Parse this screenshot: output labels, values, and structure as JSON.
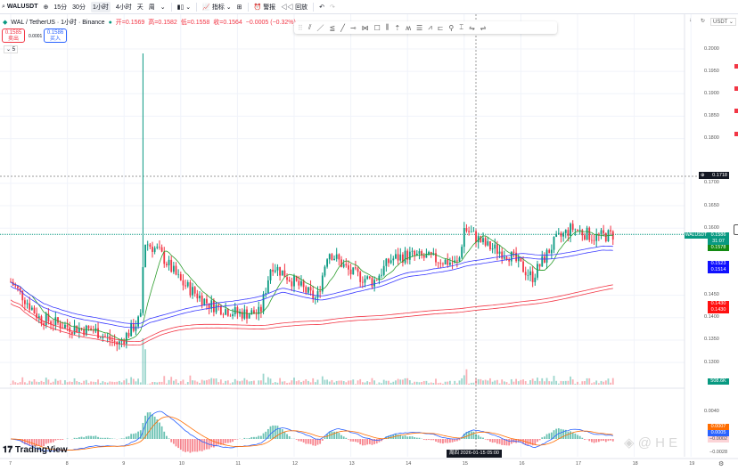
{
  "toolbar": {
    "symbol": "WALUSDT",
    "intervals": [
      "15分",
      "30分",
      "1小时",
      "4小时",
      "天",
      "周"
    ],
    "selected_interval": "1小时",
    "indicators": "指标",
    "alert": "警报",
    "replay": "回放"
  },
  "legend": {
    "title": "WAL / TetherUS · 1小时 · Binance",
    "open": "开=0.1569",
    "high": "高=0.1582",
    "low": "低=0.1558",
    "close": "收=0.1564",
    "change": "−0.0005 (−0.32%)",
    "sell_price": "0.1585",
    "sell_label": "卖出",
    "spread": "0.0001",
    "buy_price": "0.1586",
    "buy_label": "买入",
    "collapsed_count": "5"
  },
  "right_tools": {
    "currency": "USDT"
  },
  "price_axis": {
    "ticks": [
      "0.2000",
      "0.1950",
      "0.1900",
      "0.1850",
      "0.1800",
      "0.1700",
      "0.1650",
      "0.1600",
      "0.1450",
      "0.1400",
      "0.1350",
      "0.1300"
    ],
    "crosshair_price": "0.1718",
    "symbol_tag": "WALUSDT",
    "last_price": "0.1586",
    "countdown": "31:07",
    "ma_short": "0.1578",
    "ma_mid1": "0.1523",
    "ma_mid2": "0.1514",
    "ma_long1": "0.1430",
    "ma_long2": "0.1430",
    "volume": "508.6K",
    "macd_tick": "0.0040",
    "macd1": "0.0007",
    "macd2": "0.0005",
    "macd3": "−0.0002",
    "macd_low": "−0.0028"
  },
  "time_axis": {
    "labels": [
      "7",
      "8",
      "9",
      "10",
      "11",
      "12",
      "13",
      "14",
      "15",
      "16",
      "17",
      "18",
      "19"
    ],
    "crosshair_time": "周四 2026-01-15  05:00"
  },
  "brand": "TradingView",
  "colors": {
    "up": "#089981",
    "down": "#f23645",
    "ma_short": "#2e9e2e",
    "ma_mid": "#3a3aff",
    "ma_long": "#f23645",
    "macd": "#2962ff",
    "signal": "#ff6d00"
  },
  "price_path": [
    [
      7.0,
      0.148
    ],
    [
      7.2,
      0.145
    ],
    [
      7.5,
      0.14
    ],
    [
      8.0,
      0.138
    ],
    [
      8.5,
      0.137
    ],
    [
      8.9,
      0.134
    ],
    [
      9.3,
      0.14
    ],
    [
      9.35,
      0.157
    ],
    [
      9.6,
      0.155
    ],
    [
      10.0,
      0.148
    ],
    [
      10.5,
      0.143
    ],
    [
      11.0,
      0.141
    ],
    [
      11.4,
      0.141
    ],
    [
      11.6,
      0.152
    ],
    [
      12.0,
      0.148
    ],
    [
      12.4,
      0.144
    ],
    [
      12.6,
      0.155
    ],
    [
      13.0,
      0.15
    ],
    [
      13.4,
      0.148
    ],
    [
      13.7,
      0.153
    ],
    [
      14.0,
      0.154
    ],
    [
      14.5,
      0.153
    ],
    [
      14.9,
      0.152
    ],
    [
      15.0,
      0.16
    ],
    [
      15.4,
      0.156
    ],
    [
      15.8,
      0.154
    ],
    [
      16.2,
      0.149
    ],
    [
      16.6,
      0.157
    ],
    [
      16.9,
      0.16
    ],
    [
      17.3,
      0.158
    ],
    [
      17.66,
      0.1586
    ]
  ]
}
